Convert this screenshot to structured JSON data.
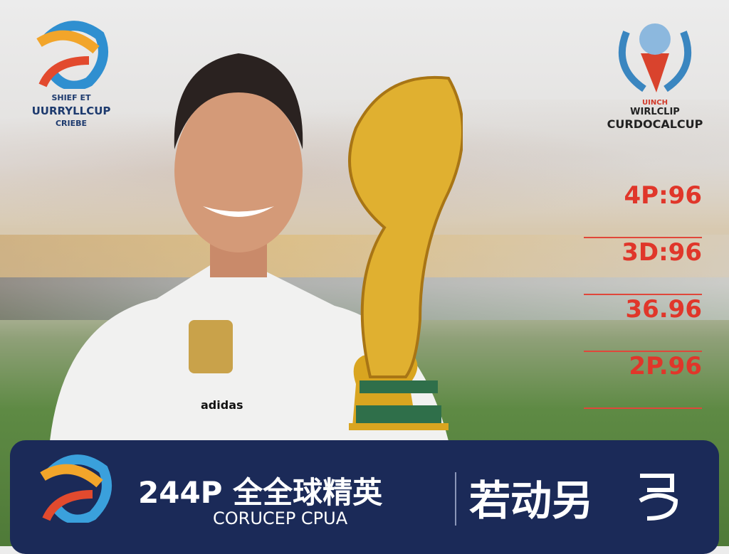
{
  "left_logo": {
    "line1": "SHIEF ET",
    "line2": "UURRYLLCUP",
    "line3": "CRIEBE"
  },
  "right_logo": {
    "line1": "UINCH",
    "line2": "WIRLCLIP",
    "line3": "CURDOCALCUP"
  },
  "scores": [
    "4P:96",
    "3D:96",
    "36.96",
    "2P.96"
  ],
  "jersey": {
    "brand": "adidas"
  },
  "banner": {
    "title": "244P 全全球精英",
    "subtitle": "CORUCEP CPUA",
    "right_text": "若动另"
  },
  "colors": {
    "banner": "#1b2a58",
    "score_red": "#e0362a",
    "gold": "#d9a520"
  }
}
